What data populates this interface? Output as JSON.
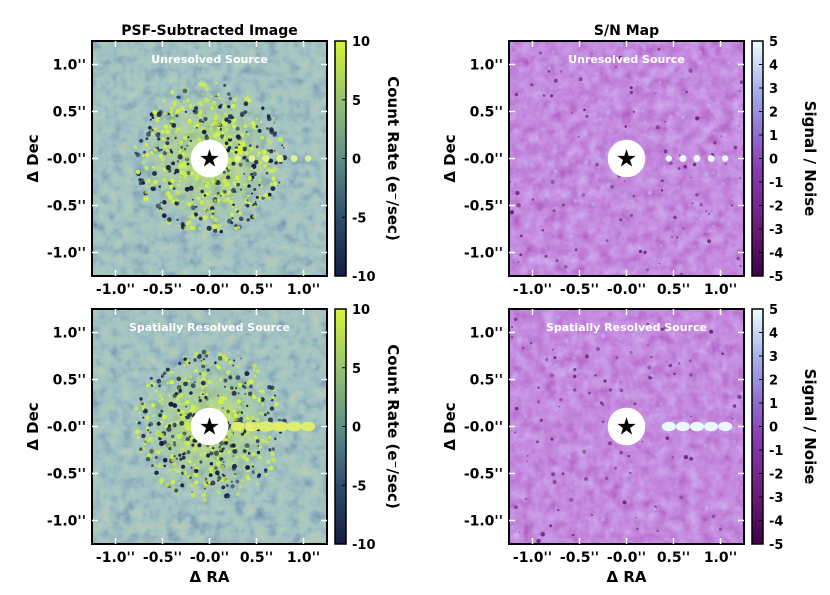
{
  "figure": {
    "col_titles": [
      "PSF-Subtracted Image",
      "S/N Map"
    ],
    "xlabel": "Δ RA",
    "ylabel": "Δ Dec",
    "star_glyph": "★"
  },
  "chart_data": [
    {
      "type": "heatmap",
      "title": "PSF-Subtracted Image",
      "annotation": "Unresolved Source",
      "ylabel": "Δ Dec",
      "xlabel": "",
      "xlim": [
        -1.25,
        1.25
      ],
      "ylim": [
        -1.25,
        1.25
      ],
      "x_ticks": [
        -1.0,
        -0.5,
        0.0,
        0.5,
        1.0
      ],
      "x_tick_labels": [
        "-1.0''",
        "-0.5''",
        "-0.0''",
        "0.5''",
        "1.0''"
      ],
      "y_ticks": [
        1.0,
        0.5,
        0.0,
        -0.5,
        -1.0
      ],
      "y_tick_labels": [
        "1.0''",
        "0.5''",
        "-0.0''",
        "-0.5''",
        "-1.0''"
      ],
      "colormap": "viridis-like (navy to yellow-green)",
      "colorbar": {
        "label": "Count Rate (e⁻/sec)",
        "range": [
          -10,
          10
        ],
        "ticks": [
          10,
          5,
          0,
          -5,
          -10
        ],
        "tick_labels": [
          "10",
          "5",
          "0",
          "-5",
          "-10"
        ]
      },
      "mask_radius": 0.2,
      "source_x": [
        0.3,
        0.45,
        0.6,
        0.75,
        0.9,
        1.05
      ],
      "source_strength": [
        4,
        5,
        6,
        6,
        5,
        4
      ],
      "source_type": "point"
    },
    {
      "type": "heatmap",
      "title": "S/N Map",
      "annotation": "Unresolved Source",
      "ylabel": "Δ Dec",
      "xlabel": "",
      "xlim": [
        -1.25,
        1.25
      ],
      "ylim": [
        -1.25,
        1.25
      ],
      "x_ticks": [
        -1.0,
        -0.5,
        0.0,
        0.5,
        1.0
      ],
      "x_tick_labels": [
        "-1.0''",
        "-0.5''",
        "-0.0''",
        "0.5''",
        "1.0''"
      ],
      "y_ticks": [
        1.0,
        0.5,
        0.0,
        -0.5,
        -1.0
      ],
      "y_tick_labels": [
        "1.0''",
        "0.5''",
        "-0.0''",
        "-0.5''",
        "-1.0''"
      ],
      "colormap": "BuPu (magenta to pale cyan)",
      "colorbar": {
        "label": "Signal / Noise",
        "range": [
          -5,
          5
        ],
        "ticks": [
          5,
          4,
          3,
          2,
          1,
          0,
          -1,
          -2,
          -3,
          -4,
          -5
        ],
        "tick_labels": [
          "5",
          "4",
          "3",
          "2",
          "1",
          "0",
          "-1",
          "-2",
          "-3",
          "-4",
          "-5"
        ]
      },
      "mask_radius": 0.2,
      "source_x": [
        0.45,
        0.6,
        0.75,
        0.9,
        1.05
      ],
      "source_strength": [
        4,
        5,
        5,
        5,
        4
      ],
      "source_type": "point"
    },
    {
      "type": "heatmap",
      "title": "",
      "annotation": "Spatially Resolved Source",
      "ylabel": "Δ Dec",
      "xlabel": "Δ RA",
      "xlim": [
        -1.25,
        1.25
      ],
      "ylim": [
        -1.25,
        1.25
      ],
      "x_ticks": [
        -1.0,
        -0.5,
        0.0,
        0.5,
        1.0
      ],
      "x_tick_labels": [
        "-1.0''",
        "-0.5''",
        "-0.0''",
        "0.5''",
        "1.0''"
      ],
      "y_ticks": [
        1.0,
        0.5,
        0.0,
        -0.5,
        -1.0
      ],
      "y_tick_labels": [
        "1.0''",
        "0.5''",
        "-0.0''",
        "-0.5''",
        "-1.0''"
      ],
      "colormap": "viridis-like (navy to yellow-green)",
      "colorbar": {
        "label": "Count Rate (e⁻/sec)",
        "range": [
          -10,
          10
        ],
        "ticks": [
          10,
          5,
          0,
          -5,
          -10
        ],
        "tick_labels": [
          "10",
          "5",
          "0",
          "-5",
          "-10"
        ]
      },
      "mask_radius": 0.2,
      "source_x": [
        0.3,
        0.45,
        0.6,
        0.75,
        0.9,
        1.05
      ],
      "source_strength": [
        5,
        6,
        7,
        7,
        6,
        5
      ],
      "source_type": "extended"
    },
    {
      "type": "heatmap",
      "title": "",
      "annotation": "Spatially Resolved Source",
      "ylabel": "Δ Dec",
      "xlabel": "Δ RA",
      "xlim": [
        -1.25,
        1.25
      ],
      "ylim": [
        -1.25,
        1.25
      ],
      "x_ticks": [
        -1.0,
        -0.5,
        0.0,
        0.5,
        1.0
      ],
      "x_tick_labels": [
        "-1.0''",
        "-0.5''",
        "-0.0''",
        "0.5''",
        "1.0''"
      ],
      "y_ticks": [
        1.0,
        0.5,
        0.0,
        -0.5,
        -1.0
      ],
      "y_tick_labels": [
        "1.0''",
        "0.5''",
        "-0.0''",
        "-0.5''",
        "-1.0''"
      ],
      "colormap": "BuPu (magenta to pale cyan)",
      "colorbar": {
        "label": "Signal / Noise",
        "range": [
          -5,
          5
        ],
        "ticks": [
          5,
          4,
          3,
          2,
          1,
          0,
          -1,
          -2,
          -3,
          -4,
          -5
        ],
        "tick_labels": [
          "5",
          "4",
          "3",
          "2",
          "1",
          "0",
          "-1",
          "-2",
          "-3",
          "-4",
          "-5"
        ]
      },
      "mask_radius": 0.2,
      "source_x": [
        0.45,
        0.6,
        0.75,
        0.9,
        1.05
      ],
      "source_strength": [
        5,
        5,
        5,
        5,
        5
      ],
      "source_type": "extended"
    }
  ],
  "colors": {
    "count_low": "#1b2d5a",
    "count_mid": "#5b8c87",
    "count_high": "#c9f03a",
    "sn_low": "#4b004f",
    "sn_mid": "#8d3cb5",
    "sn_high": "#e8ffff",
    "mask": "#ffffff",
    "annotation_text": "#ffffff",
    "axis": "#000000"
  }
}
